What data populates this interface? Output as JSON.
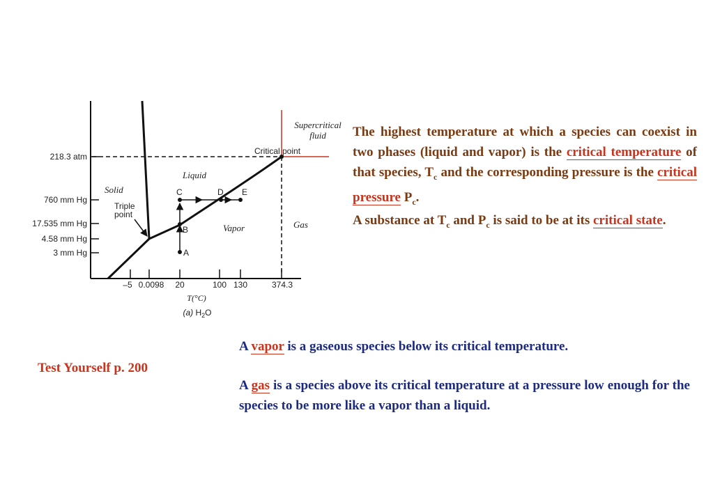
{
  "diagram": {
    "y_axis_labels": [
      "218.3 atm",
      "760 mm Hg",
      "17.535 mm Hg",
      "4.58 mm Hg",
      "3 mm Hg"
    ],
    "x_axis_labels": [
      "–5",
      "0.0098",
      "20",
      "100",
      "130",
      "374.3"
    ],
    "x_axis_title": "T(°C)",
    "caption_prefix": "(a)",
    "caption_formula": "H",
    "caption_subscript": "2",
    "caption_suffix": "O",
    "phase_labels": {
      "solid": "Solid",
      "liquid": "Liquid",
      "vapor": "Vapor",
      "gas": "Gas",
      "supercritical_line1": "Supercritical",
      "supercritical_line2": "fluid"
    },
    "annotations": {
      "critical_point": "Critical point",
      "triple_line1": "Triple",
      "triple_line2": "point"
    },
    "point_labels": [
      "A",
      "B",
      "C",
      "D",
      "E"
    ]
  },
  "text": {
    "p1": {
      "part1": "The highest temperature at which a species can coexist in two phases (liquid and vapor) is the ",
      "term1": "critical temperature",
      "part2": " of that species, T",
      "sub1": "c",
      "part3": " and the corresponding pressure is the ",
      "term2": "critical pressure",
      "part4": " P",
      "sub2": "c",
      "part5": "."
    },
    "p2": {
      "part1": "A substance at T",
      "sub1": "c",
      "part2": " and P",
      "sub2": "c",
      "part3": " is said to be at its ",
      "term": "critical state",
      "part4": "."
    },
    "p3": {
      "part1": "A ",
      "term": "vapor",
      "part2": " is a gaseous species below its critical temperature."
    },
    "p4": {
      "part1": "A ",
      "term": "gas",
      "part2": " is a species above its critical temperature at a pressure low enough for the species to be more like a vapor than a liquid."
    },
    "test_yourself": "Test Yourself p. 200"
  },
  "colors": {
    "brown_text": "#7a3a12",
    "navy_text": "#1c2a80",
    "highlight_red": "#c8341d",
    "critical_line": "#c8341d"
  }
}
